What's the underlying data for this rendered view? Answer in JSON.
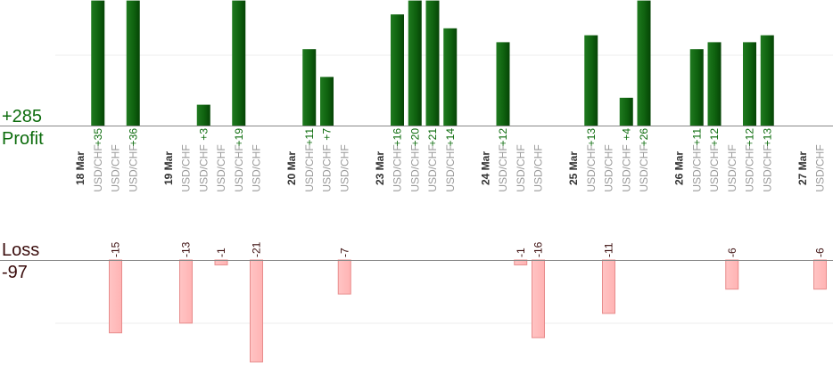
{
  "summary": {
    "profit_total": "+285",
    "profit_label": "Profit",
    "loss_label": "Loss",
    "loss_total": "-97"
  },
  "colors": {
    "profit_bar": "#0f620f",
    "profit_text": "#0b6b0b",
    "loss_bar": "#ffb3b3",
    "loss_border": "#e88c8c",
    "loss_text": "#3a0c0c",
    "axis": "#888888",
    "grid": "#ececec",
    "category": "#9a9a9a",
    "date": "#333333"
  },
  "chart_data": {
    "type": "bar",
    "profit_scale_max": 18,
    "loss_scale_max": 21,
    "slots": [
      {
        "kind": "date",
        "label": "18 Mar"
      },
      {
        "kind": "trade",
        "label": "USD/CHF",
        "value": 35
      },
      {
        "kind": "trade",
        "label": "USD/CHF",
        "value": -15
      },
      {
        "kind": "trade",
        "label": "USD/CHF",
        "value": 36
      },
      {
        "kind": "gap"
      },
      {
        "kind": "date",
        "label": "19 Mar"
      },
      {
        "kind": "trade",
        "label": "USD/CHF",
        "value": -13
      },
      {
        "kind": "trade",
        "label": "USD/CHF",
        "value": 3
      },
      {
        "kind": "trade",
        "label": "USD/CHF",
        "value": -1
      },
      {
        "kind": "trade",
        "label": "USD/CHF",
        "value": 19
      },
      {
        "kind": "trade",
        "label": "USD/CHF",
        "value": -21
      },
      {
        "kind": "gap"
      },
      {
        "kind": "date",
        "label": "20 Mar"
      },
      {
        "kind": "trade",
        "label": "USD/CHF",
        "value": 11
      },
      {
        "kind": "trade",
        "label": "USD/CHF",
        "value": 7
      },
      {
        "kind": "trade",
        "label": "USD/CHF",
        "value": -7
      },
      {
        "kind": "gap"
      },
      {
        "kind": "date",
        "label": "23 Mar"
      },
      {
        "kind": "trade",
        "label": "USD/CHF",
        "value": 16
      },
      {
        "kind": "trade",
        "label": "USD/CHF",
        "value": 20
      },
      {
        "kind": "trade",
        "label": "USD/CHF",
        "value": 21
      },
      {
        "kind": "trade",
        "label": "USD/CHF",
        "value": 14
      },
      {
        "kind": "gap"
      },
      {
        "kind": "date",
        "label": "24 Mar"
      },
      {
        "kind": "trade",
        "label": "USD/CHF",
        "value": 12
      },
      {
        "kind": "trade",
        "label": "USD/CHF",
        "value": -1
      },
      {
        "kind": "trade",
        "label": "USD/CHF",
        "value": -16
      },
      {
        "kind": "gap"
      },
      {
        "kind": "date",
        "label": "25 Mar"
      },
      {
        "kind": "trade",
        "label": "USD/CHF",
        "value": 13
      },
      {
        "kind": "trade",
        "label": "USD/CHF",
        "value": -11
      },
      {
        "kind": "trade",
        "label": "USD/CHF",
        "value": 4
      },
      {
        "kind": "trade",
        "label": "USD/CHF",
        "value": 26
      },
      {
        "kind": "gap"
      },
      {
        "kind": "date",
        "label": "26 Mar"
      },
      {
        "kind": "trade",
        "label": "USD/CHF",
        "value": 11
      },
      {
        "kind": "trade",
        "label": "USD/CHF",
        "value": 12
      },
      {
        "kind": "trade",
        "label": "USD/CHF",
        "value": -6
      },
      {
        "kind": "trade",
        "label": "USD/CHF",
        "value": 12
      },
      {
        "kind": "trade",
        "label": "USD/CHF",
        "value": 13
      },
      {
        "kind": "gap"
      },
      {
        "kind": "date",
        "label": "27 Mar"
      },
      {
        "kind": "trade",
        "label": "USD/CHF",
        "value": -6
      }
    ]
  }
}
